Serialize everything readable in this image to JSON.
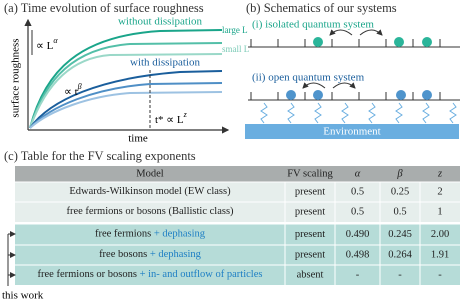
{
  "panel_a": {
    "title": "(a) Time evolution of surface roughness",
    "without": "without dissipation",
    "with": "with dissipation",
    "large": "large L",
    "small": "small L",
    "l_alpha": {
      "base": "∝ L",
      "exp": "α"
    },
    "t_beta": {
      "base": "∝ t",
      "exp": "β"
    },
    "t_star": {
      "base": "t* ∝ L",
      "exp": "z"
    },
    "ylabel": "surface roughness",
    "xlabel": "time"
  },
  "panel_b": {
    "title": "(b) Schematics of our systems",
    "isolated": "(i) isolated quantum system",
    "open": "(ii) open quantum system",
    "environment": "Environment"
  },
  "panel_c": {
    "title": "(c) Table for the FV scaling exponents",
    "header": [
      "Model",
      "FV scaling",
      "α",
      "β",
      "z"
    ],
    "rows": [
      [
        {
          "text": "Edwards-Wilkinson model (EW class)"
        },
        "present",
        "0.5",
        "0.25",
        "2"
      ],
      [
        {
          "text": "free fermions or bosons (Ballistic class)"
        },
        "present",
        "0.5",
        "0.5",
        "1"
      ],
      [
        {
          "text": "free fermions",
          "highlight": "+ dephasing"
        },
        "present",
        "0.490",
        "0.245",
        "2.00"
      ],
      [
        {
          "text": "free bosons",
          "highlight": "+ dephasing"
        },
        "present",
        "0.498",
        "0.264",
        "1.91"
      ],
      [
        {
          "text": "free fermions or bosons",
          "highlight": "+ in- and outflow of particles"
        },
        "absent",
        "-",
        "-",
        "-"
      ]
    ],
    "note": "this work"
  }
}
